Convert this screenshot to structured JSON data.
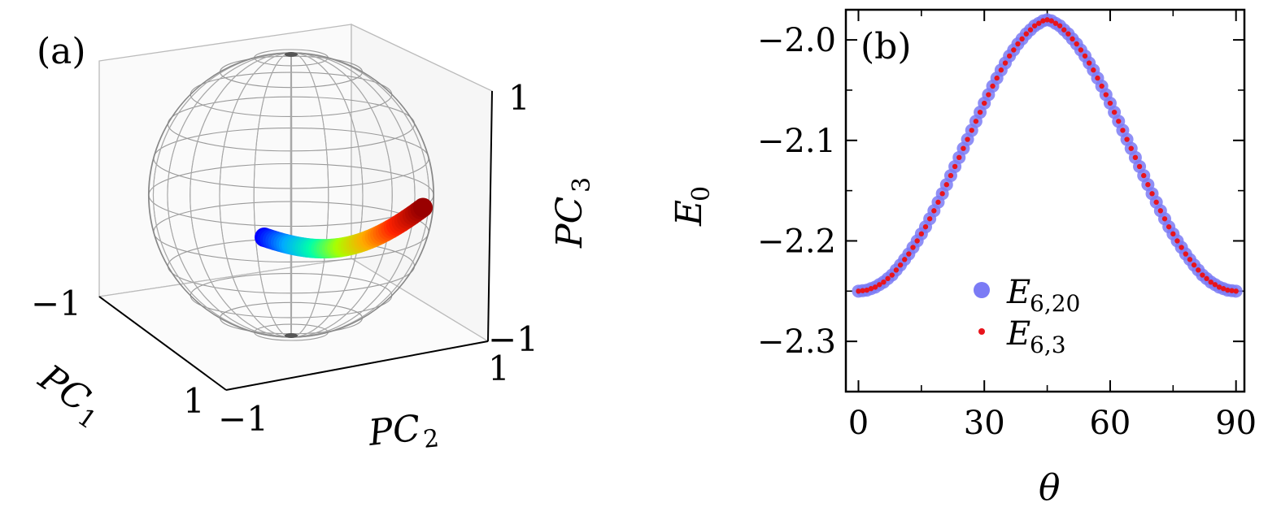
{
  "panel_a": {
    "label": "(a)",
    "pc1_label": "PC",
    "pc1_sub": "1",
    "pc2_label": "PC",
    "pc2_sub": "2",
    "pc3_label": "PC",
    "pc3_sub": "3",
    "ticks": {
      "pc3_top": "1",
      "pc3_bottom": "−1",
      "pc1_near": "−1",
      "pc1_far": "1",
      "pc2_left": "−1",
      "pc2_right": "1"
    },
    "curve_colormap": [
      "#0000ff",
      "#00aaff",
      "#00ffaa",
      "#aaff00",
      "#ffaa00",
      "#ff2200",
      "#990000"
    ]
  },
  "chart_data": [
    {
      "type": "scatter",
      "panel": "(b)",
      "title": "(b)",
      "xlabel": "θ",
      "ylabel_main": "E",
      "ylabel_sub": "0",
      "xlim": [
        -3,
        92
      ],
      "ylim": [
        -2.35,
        -1.97
      ],
      "xticks": [
        0,
        30,
        60,
        90
      ],
      "xtick_labels": [
        "0",
        "30",
        "60",
        "90"
      ],
      "yticks": [
        -2.3,
        -2.2,
        -2.1,
        -2.0
      ],
      "ytick_labels": [
        "−2.3",
        "−2.2",
        "−2.1",
        "−2.0"
      ],
      "grid": false,
      "legend_position": "lower-center",
      "series": [
        {
          "name_main": "E",
          "name_sub": "6,20",
          "color": "#7b7bf5",
          "marker": "large-circle",
          "x": [
            0,
            2,
            4,
            6,
            8,
            10,
            12,
            14,
            16,
            18,
            20,
            22,
            24,
            26,
            28,
            30,
            32,
            34,
            36,
            38,
            40,
            42,
            44,
            45,
            46,
            48,
            50,
            52,
            54,
            56,
            58,
            60,
            62,
            64,
            66,
            68,
            70,
            72,
            74,
            76,
            78,
            80,
            82,
            84,
            86,
            88,
            90
          ],
          "y": [
            -2.25,
            -2.249,
            -2.246,
            -2.241,
            -2.234,
            -2.224,
            -2.213,
            -2.2,
            -2.186,
            -2.17,
            -2.153,
            -2.135,
            -2.117,
            -2.099,
            -2.081,
            -2.063,
            -2.046,
            -2.03,
            -2.016,
            -2.004,
            -1.994,
            -1.986,
            -1.981,
            -1.98,
            -1.981,
            -1.986,
            -1.994,
            -2.004,
            -2.016,
            -2.03,
            -2.046,
            -2.063,
            -2.081,
            -2.099,
            -2.117,
            -2.135,
            -2.153,
            -2.17,
            -2.186,
            -2.2,
            -2.213,
            -2.224,
            -2.234,
            -2.241,
            -2.246,
            -2.249,
            -2.25
          ]
        },
        {
          "name_main": "E",
          "name_sub": "6,3",
          "color": "#e8141c",
          "marker": "small-dot",
          "x": [
            0,
            2,
            4,
            6,
            8,
            10,
            12,
            14,
            16,
            18,
            20,
            22,
            24,
            26,
            28,
            30,
            32,
            34,
            36,
            38,
            40,
            42,
            44,
            45,
            46,
            48,
            50,
            52,
            54,
            56,
            58,
            60,
            62,
            64,
            66,
            68,
            70,
            72,
            74,
            76,
            78,
            80,
            82,
            84,
            86,
            88,
            90
          ],
          "y": [
            -2.25,
            -2.249,
            -2.246,
            -2.241,
            -2.234,
            -2.224,
            -2.213,
            -2.2,
            -2.186,
            -2.17,
            -2.153,
            -2.135,
            -2.117,
            -2.099,
            -2.081,
            -2.063,
            -2.046,
            -2.03,
            -2.016,
            -2.004,
            -1.994,
            -1.986,
            -1.981,
            -1.98,
            -1.981,
            -1.986,
            -1.994,
            -2.004,
            -2.016,
            -2.03,
            -2.046,
            -2.063,
            -2.081,
            -2.099,
            -2.117,
            -2.135,
            -2.153,
            -2.17,
            -2.186,
            -2.2,
            -2.213,
            -2.224,
            -2.234,
            -2.241,
            -2.246,
            -2.249,
            -2.25
          ]
        }
      ]
    }
  ]
}
